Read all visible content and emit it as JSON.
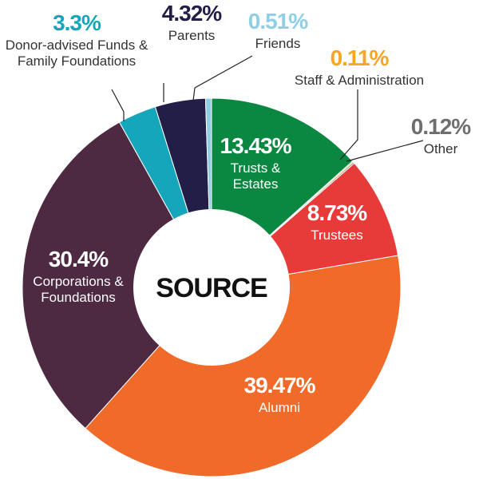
{
  "chart_data": {
    "type": "pie",
    "title": "",
    "center_label": "SOURCE",
    "slices": [
      {
        "label": "Trusts & Estates",
        "label_lines": [
          "Trusts &",
          "Estates"
        ],
        "value": 13.43,
        "display": "13.43%",
        "color": "#0a8740"
      },
      {
        "label": "Staff & Administration",
        "label_lines": [
          "Staff & Administration"
        ],
        "value": 0.11,
        "display": "0.11%",
        "color": "#f6a623"
      },
      {
        "label": "Other",
        "label_lines": [
          "Other"
        ],
        "value": 0.12,
        "display": "0.12%",
        "color": "#6e6e6e"
      },
      {
        "label": "Trustees",
        "label_lines": [
          "Trustees"
        ],
        "value": 8.73,
        "display": "8.73%",
        "color": "#e63b39"
      },
      {
        "label": "Alumni",
        "label_lines": [
          "Alumni"
        ],
        "value": 39.47,
        "display": "39.47%",
        "color": "#f06a2a"
      },
      {
        "label": "Corporations & Foundations",
        "label_lines": [
          "Corporations &",
          "Foundations"
        ],
        "value": 30.4,
        "display": "30.4%",
        "color": "#4d2942"
      },
      {
        "label": "Donor-advised Funds & Family Foundations",
        "label_lines": [
          "Donor-advised Funds &",
          "Family Foundations"
        ],
        "value": 3.3,
        "display": "3.3%",
        "color": "#16a6bc"
      },
      {
        "label": "Parents",
        "label_lines": [
          "Parents"
        ],
        "value": 4.32,
        "display": "4.32%",
        "color": "#221e48"
      },
      {
        "label": "Friends",
        "label_lines": [
          "Friends"
        ],
        "value": 0.51,
        "display": "0.51%",
        "color": "#8fcfe6"
      }
    ]
  }
}
